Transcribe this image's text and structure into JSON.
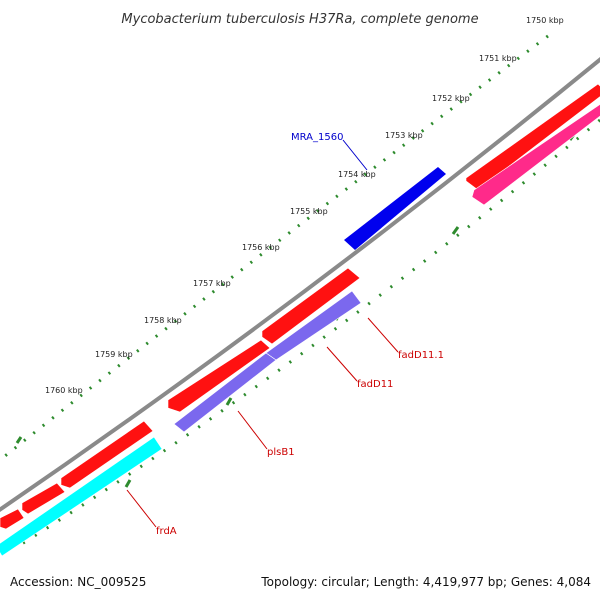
{
  "title": "Mycobacterium tuberculosis H37Ra, complete genome",
  "ticks": [
    "1750 kbp",
    "1751 kbp",
    "1752 kbp",
    "1753 kbp",
    "1754 kbp",
    "1755 kbp",
    "1756 kbp",
    "1757 kbp",
    "1758 kbp",
    "1759 kbp",
    "1760 kbp"
  ],
  "genes": {
    "MRA_1560": {
      "label": "MRA_1560",
      "color": "#0000cc"
    },
    "fadD11.1": {
      "label": "fadD11.1",
      "color": "#cc0000"
    },
    "fadD11": {
      "label": "fadD11",
      "color": "#cc0000"
    },
    "plsB1": {
      "label": "plsB1",
      "color": "#cc0000"
    },
    "frdA": {
      "label": "frdA",
      "color": "#cc0000"
    }
  },
  "colors": {
    "backbone": "#888888",
    "cds_forward": "#ff0000",
    "cds_forward_2": "#ff1a8c",
    "cds_blue": "#0000ee",
    "cds_purple": "#7b68ee",
    "cds_cyan": "#00ffff",
    "tick_dots": "#2e8b2e"
  },
  "footer": {
    "accession": "Accession: NC_009525",
    "topology": "Topology: circular; Length: 4,419,977 bp; Genes: 4,084"
  }
}
